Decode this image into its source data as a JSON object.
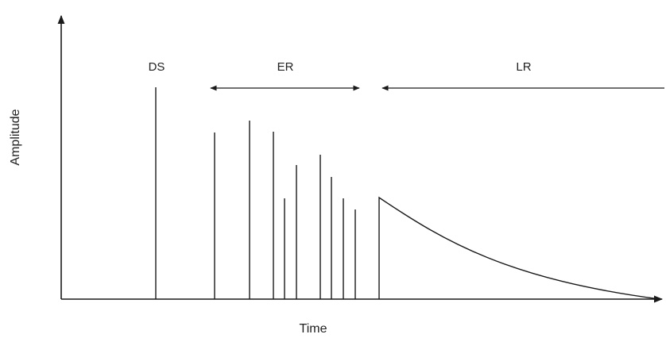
{
  "axes": {
    "x_label": "Time",
    "y_label": "Amplitude"
  },
  "regions": {
    "direct_sound": "DS",
    "early_reflections": "ER",
    "late_reverberation": "LR"
  },
  "colors": {
    "ink": "#1a1a1a",
    "background": "#ffffff"
  }
}
